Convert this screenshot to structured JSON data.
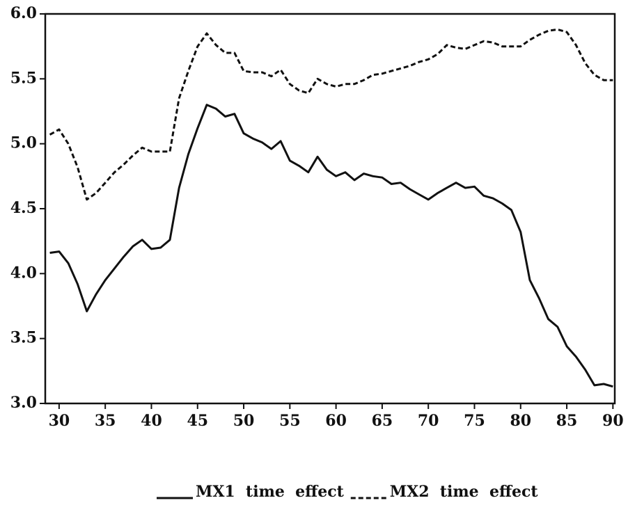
{
  "chart_data": {
    "type": "line",
    "x": [
      29,
      30,
      31,
      32,
      33,
      34,
      35,
      36,
      37,
      38,
      39,
      40,
      41,
      42,
      43,
      44,
      45,
      46,
      47,
      48,
      49,
      50,
      51,
      52,
      53,
      54,
      55,
      56,
      57,
      58,
      59,
      60,
      61,
      62,
      63,
      64,
      65,
      66,
      67,
      68,
      69,
      70,
      71,
      72,
      73,
      74,
      75,
      76,
      77,
      78,
      79,
      80,
      81,
      82,
      83,
      84,
      85,
      86,
      87,
      88,
      89,
      90
    ],
    "series": [
      {
        "name": "MX1  time  effect",
        "color": "#111111",
        "dash": "solid",
        "values": [
          4.16,
          4.17,
          4.08,
          3.92,
          3.71,
          3.84,
          3.95,
          4.04,
          4.13,
          4.21,
          4.26,
          4.19,
          4.2,
          4.26,
          4.66,
          4.92,
          5.12,
          5.3,
          5.27,
          5.21,
          5.23,
          5.08,
          5.04,
          5.01,
          4.96,
          5.02,
          4.87,
          4.83,
          4.78,
          4.9,
          4.8,
          4.75,
          4.78,
          4.72,
          4.77,
          4.75,
          4.74,
          4.69,
          4.7,
          4.65,
          4.61,
          4.57,
          4.62,
          4.66,
          4.7,
          4.66,
          4.67,
          4.6,
          4.58,
          4.54,
          4.49,
          4.32,
          3.95,
          3.81,
          3.65,
          3.59,
          3.44,
          3.36,
          3.26,
          3.14,
          3.15,
          3.13
        ]
      },
      {
        "name": "MX2  time  effect",
        "color": "#111111",
        "dash": "dashed",
        "values": [
          5.07,
          5.11,
          5.0,
          4.82,
          4.57,
          4.62,
          4.7,
          4.78,
          4.84,
          4.91,
          4.97,
          4.94,
          4.94,
          4.94,
          5.35,
          5.56,
          5.75,
          5.85,
          5.76,
          5.7,
          5.7,
          5.56,
          5.55,
          5.55,
          5.52,
          5.57,
          5.46,
          5.41,
          5.39,
          5.5,
          5.46,
          5.44,
          5.46,
          5.46,
          5.49,
          5.53,
          5.54,
          5.56,
          5.58,
          5.6,
          5.63,
          5.65,
          5.69,
          5.76,
          5.74,
          5.73,
          5.76,
          5.79,
          5.78,
          5.75,
          5.75,
          5.75,
          5.8,
          5.84,
          5.87,
          5.88,
          5.86,
          5.76,
          5.62,
          5.53,
          5.49,
          5.49
        ]
      }
    ],
    "xlim": [
      28.5,
      90.2
    ],
    "xticks": [
      30,
      35,
      40,
      45,
      50,
      55,
      60,
      65,
      70,
      75,
      80,
      85,
      90
    ],
    "ylim": [
      3.0,
      6.0
    ],
    "yticks": [
      {
        "value": 3.0,
        "label": "3.0"
      },
      {
        "value": 3.5,
        "label": "3.5"
      },
      {
        "value": 4.0,
        "label": "4.0"
      },
      {
        "value": 4.5,
        "label": "4.5"
      },
      {
        "value": 5.0,
        "label": "5.0"
      },
      {
        "value": 5.5,
        "label": "5.5"
      },
      {
        "value": 6.0,
        "label": "6.0"
      }
    ],
    "legend": "bottom"
  }
}
